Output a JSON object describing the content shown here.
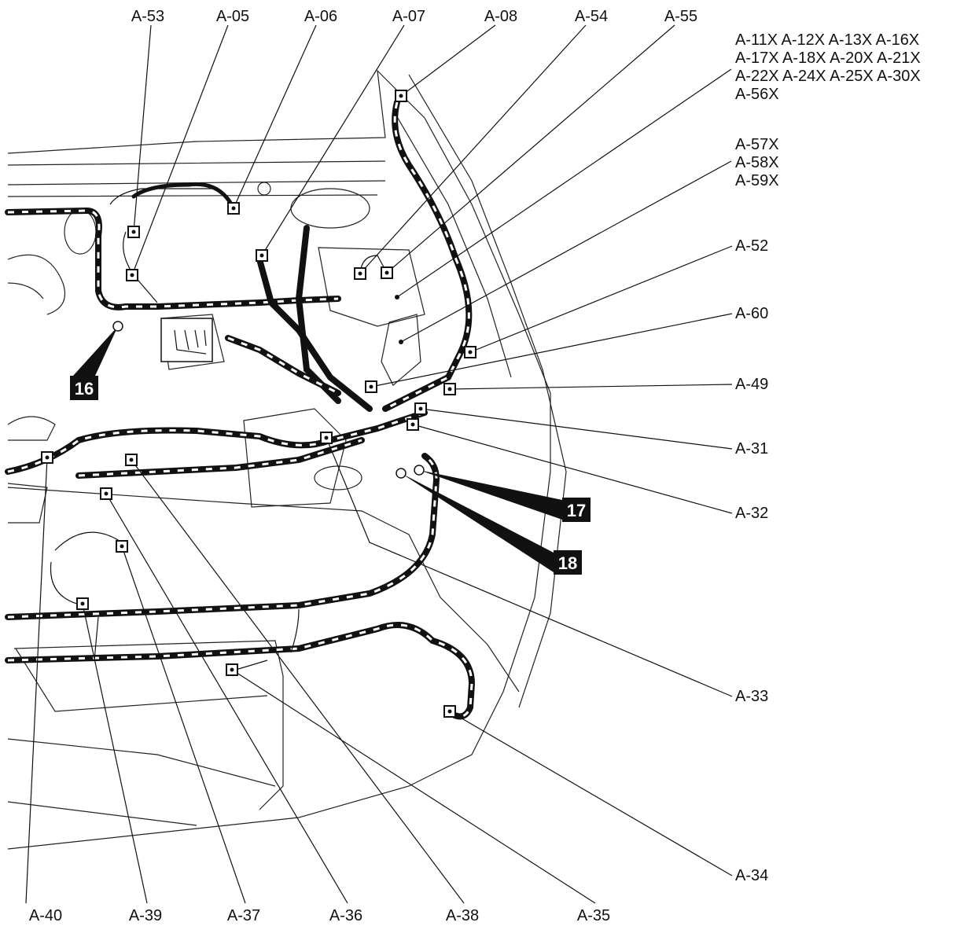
{
  "top_labels": [
    "A-53",
    "A-05",
    "A-06",
    "A-07",
    "A-08",
    "A-54",
    "A-55"
  ],
  "group_labels": [
    [
      "A-11X A-12X A-13X A-16X",
      "A-17X A-18X A-20X A-21X",
      "A-22X A-24X A-25X A-30X",
      "A-56X"
    ],
    [
      "A-57X",
      "A-58X",
      "A-59X"
    ]
  ],
  "right_labels": [
    "A-52",
    "A-60",
    "A-49",
    "A-31",
    "A-32",
    "A-33",
    "A-34"
  ],
  "bottom_labels": [
    "A-40",
    "A-39",
    "A-37",
    "A-36",
    "A-38",
    "A-35"
  ],
  "badges": [
    "16",
    "17",
    "18"
  ]
}
